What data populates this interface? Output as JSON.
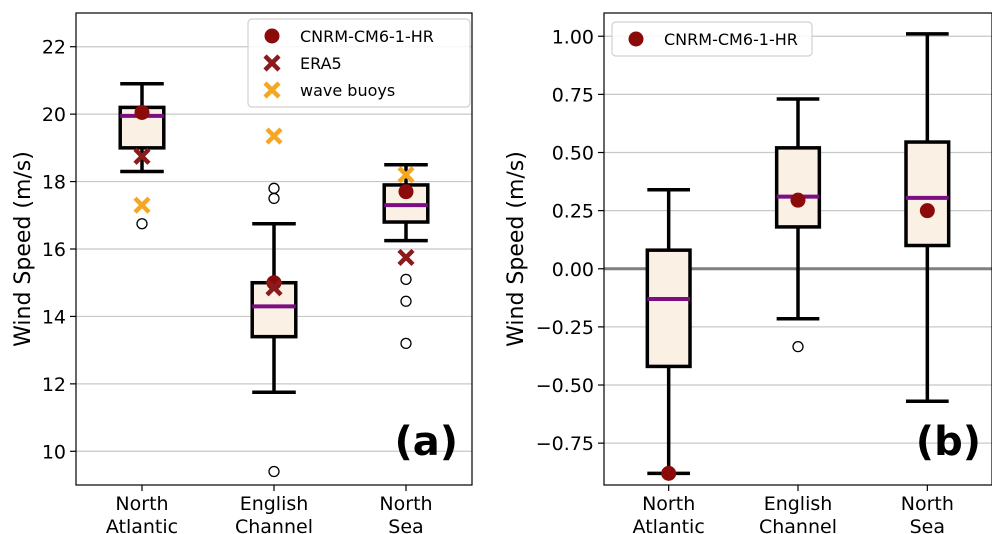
{
  "chart_data": [
    {
      "type": "box",
      "panel_label": "(a)",
      "categories": [
        "North Atlantic",
        "English Channel",
        "North Sea"
      ],
      "ylabel": "Wind Speed (m/s)",
      "ylim": [
        9.0,
        23.0
      ],
      "yticks": [
        10,
        12,
        14,
        16,
        18,
        20,
        22
      ],
      "grid": "horizontal",
      "legend_position": "top-right",
      "boxes": [
        {
          "whisker_low": 18.3,
          "q1": 19.0,
          "median": 19.95,
          "q3": 20.2,
          "whisker_high": 20.9,
          "outliers": [
            16.75
          ]
        },
        {
          "whisker_low": 11.75,
          "q1": 13.4,
          "median": 14.3,
          "q3": 15.0,
          "whisker_high": 16.75,
          "outliers": [
            17.8,
            17.5,
            9.4
          ]
        },
        {
          "whisker_low": 16.25,
          "q1": 16.8,
          "median": 17.3,
          "q3": 17.9,
          "whisker_high": 18.5,
          "outliers": [
            15.1,
            14.45,
            13.2
          ]
        }
      ],
      "series": [
        {
          "name": "CNRM-CM6-1-HR",
          "marker": "circle",
          "color": "#8b0a0a",
          "values": [
            20.05,
            15.0,
            17.7
          ]
        },
        {
          "name": "ERA5",
          "marker": "x",
          "color": "#8b1a1a",
          "values": [
            18.75,
            14.85,
            15.75
          ]
        },
        {
          "name": "wave buoys",
          "marker": "x",
          "color": "#f5a623",
          "values": [
            17.3,
            19.35,
            18.2
          ]
        }
      ]
    },
    {
      "type": "box",
      "panel_label": "(b)",
      "categories": [
        "North Atlantic",
        "English Channel",
        "North Sea"
      ],
      "ylabel": "Wind Speed (m/s)",
      "ylim": [
        -0.93,
        1.1
      ],
      "yticks": [
        -0.75,
        -0.5,
        -0.25,
        0.0,
        0.25,
        0.5,
        0.75,
        1.0
      ],
      "ytick_labels": [
        "−0.75",
        "−0.50",
        "−0.25",
        "0.00",
        "0.25",
        "0.50",
        "0.75",
        "1.00"
      ],
      "grid": "horizontal",
      "zero_line": true,
      "legend_position": "top-left",
      "boxes": [
        {
          "whisker_low": -0.88,
          "q1": -0.42,
          "median": -0.13,
          "q3": 0.08,
          "whisker_high": 0.34,
          "outliers": []
        },
        {
          "whisker_low": -0.215,
          "q1": 0.18,
          "median": 0.31,
          "q3": 0.52,
          "whisker_high": 0.73,
          "outliers": [
            -0.335
          ]
        },
        {
          "whisker_low": -0.57,
          "q1": 0.1,
          "median": 0.305,
          "q3": 0.545,
          "whisker_high": 1.01,
          "outliers": []
        }
      ],
      "series": [
        {
          "name": "CNRM-CM6-1-HR",
          "marker": "circle",
          "color": "#8b0a0a",
          "values": [
            -0.88,
            0.295,
            0.25
          ]
        }
      ]
    }
  ],
  "colors": {
    "box_fill": "#faf0e4",
    "median_line": "#7b0e82",
    "grid": "#c8c8c8",
    "zero_line": "#808080"
  }
}
